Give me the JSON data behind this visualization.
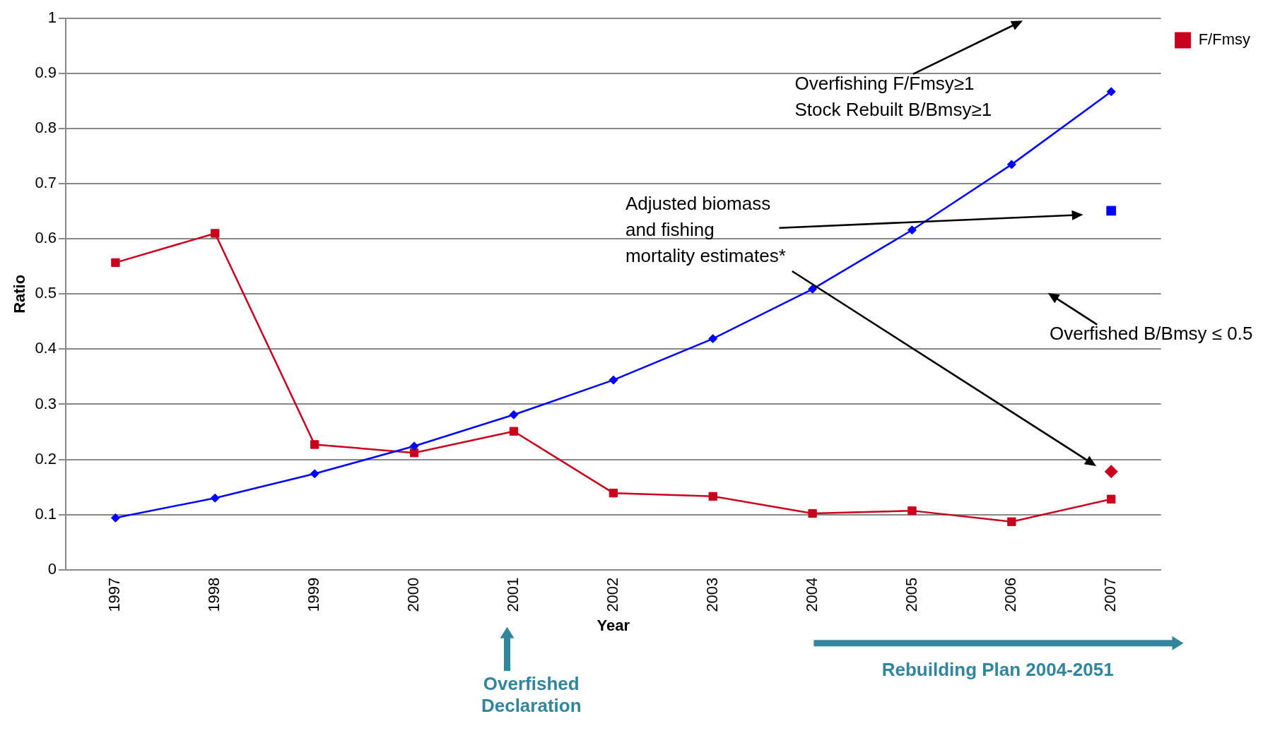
{
  "chart_data": {
    "type": "line",
    "ylabel": "Ratio",
    "xlabel": "Year",
    "categories": [
      "1997",
      "1998",
      "1999",
      "2000",
      "2001",
      "2002",
      "2003",
      "2004",
      "2005",
      "2006",
      "2007"
    ],
    "series": [
      {
        "color": "#0000ff",
        "marker": "diamond",
        "values": [
          0.094,
          0.13,
          0.174,
          0.224,
          0.281,
          0.344,
          0.419,
          0.509,
          0.616,
          0.735,
          0.867
        ]
      },
      {
        "name": "F/Fmsy",
        "color": "#c8001e",
        "marker": "square",
        "values": [
          0.557,
          0.61,
          0.227,
          0.212,
          0.251,
          0.139,
          0.133,
          0.102,
          0.107,
          0.087,
          0.128
        ]
      },
      {
        "type": "scatter",
        "color": "#0000ff",
        "marker": "square",
        "values": [
          null,
          null,
          null,
          null,
          null,
          null,
          null,
          null,
          null,
          null,
          0.651
        ]
      },
      {
        "type": "scatter",
        "color": "#c8001e",
        "marker": "diamond",
        "values": [
          null,
          null,
          null,
          null,
          null,
          null,
          null,
          null,
          null,
          null,
          0.178
        ]
      }
    ],
    "ylim": [
      0,
      1
    ],
    "yticks": [
      0,
      0.1,
      0.2,
      0.3,
      0.4,
      0.5,
      0.6,
      0.7,
      0.8,
      0.9,
      1
    ],
    "grid": "y",
    "legend": "top right",
    "line_style": "solid",
    "annotations": [
      "Overfishing F/Fmsy≥1\nStock Rebuilt B/Bmsy≥1",
      "Adjusted biomass\nand fishing\nmortality estimates*",
      "Overfished B/Bmsy ≤ 0.5",
      "Overfished\nDeclaration",
      "Rebuilding Plan 2004-2051"
    ]
  }
}
